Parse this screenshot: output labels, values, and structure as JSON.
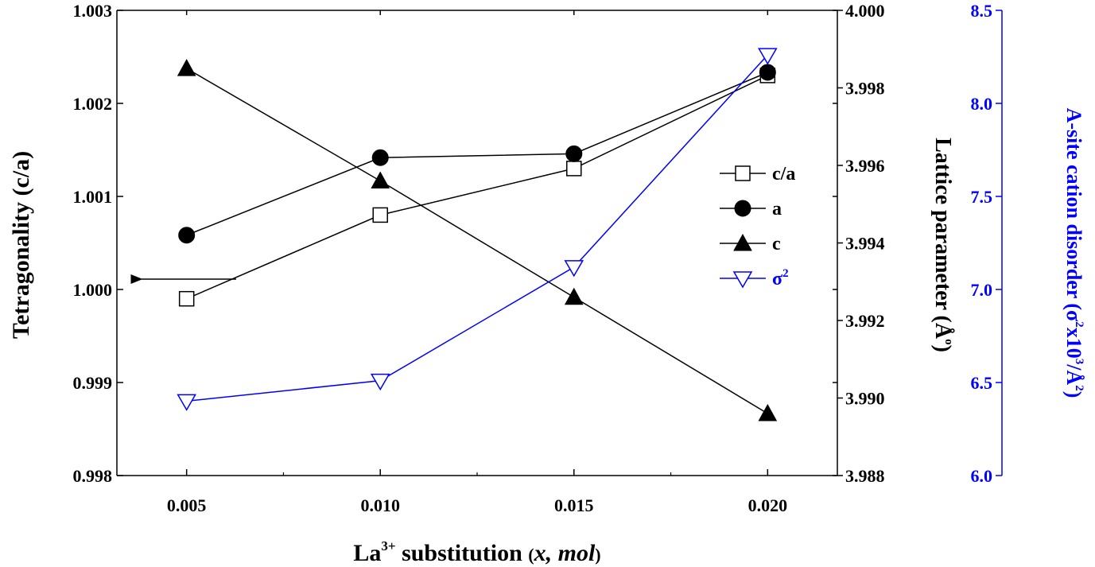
{
  "chart_data": {
    "type": "line",
    "x": [
      0.005,
      0.01,
      0.015,
      0.02
    ],
    "xlim": [
      0.0032,
      0.0218
    ],
    "x_ticks": [
      "0.005",
      "0.010",
      "0.015",
      "0.020"
    ],
    "xlabel": {
      "prefix": "La",
      "sup": "3+",
      "mid": " substitution ",
      "paren_open": "(",
      "var": "x, mol",
      "paren_close": ")"
    },
    "axes": {
      "left": {
        "label": "Tetragonality (c/a)",
        "lim": [
          0.998,
          1.003
        ],
        "ticks": [
          "0.998",
          "0.999",
          "1.000",
          "1.001",
          "1.002",
          "1.003"
        ],
        "color": "#000000"
      },
      "right1": {
        "label_main": "Lattice parameter (",
        "label_unit": "Å",
        "label_ring": "o",
        "label_close": ")",
        "lim": [
          3.988,
          4.0
        ],
        "ticks": [
          "3.988",
          "3.990",
          "3.992",
          "3.994",
          "3.996",
          "3.998",
          "4.000"
        ],
        "color": "#000000"
      },
      "right2": {
        "label_main": "A-site cation disorder (σ",
        "label_sup1": "2",
        "label_mid": "x10",
        "label_sup2": "3",
        "label_slash": "/Å",
        "label_sup3": "2",
        "label_close": ")",
        "lim": [
          6.0,
          8.5
        ],
        "ticks": [
          "6.0",
          "6.5",
          "7.0",
          "7.5",
          "8.0",
          "8.5"
        ],
        "color": "#0000ff"
      }
    },
    "series": [
      {
        "name": "c/a",
        "axis": "left",
        "marker": "open-square",
        "color": "#000000",
        "values": [
          0.9999,
          1.0008,
          1.0013,
          1.0023
        ]
      },
      {
        "name": "a",
        "axis": "right1",
        "marker": "filled-circle",
        "color": "#000000",
        "values": [
          3.9942,
          3.9962,
          3.9963,
          3.9984
        ]
      },
      {
        "name": "c",
        "axis": "right1",
        "marker": "filled-triangle",
        "color": "#000000",
        "values": [
          3.9985,
          3.9956,
          3.9926,
          3.9896
        ]
      },
      {
        "name": "σ",
        "name_sup": "2",
        "axis": "right2",
        "marker": "open-down-triangle",
        "color": "#0000ff",
        "values": [
          6.4,
          6.51,
          7.12,
          8.26
        ]
      }
    ],
    "legend_position": "right-middle",
    "annotation_arrow": {
      "points_to": "left-axis",
      "at_y": 1.0001
    },
    "grid": false
  }
}
